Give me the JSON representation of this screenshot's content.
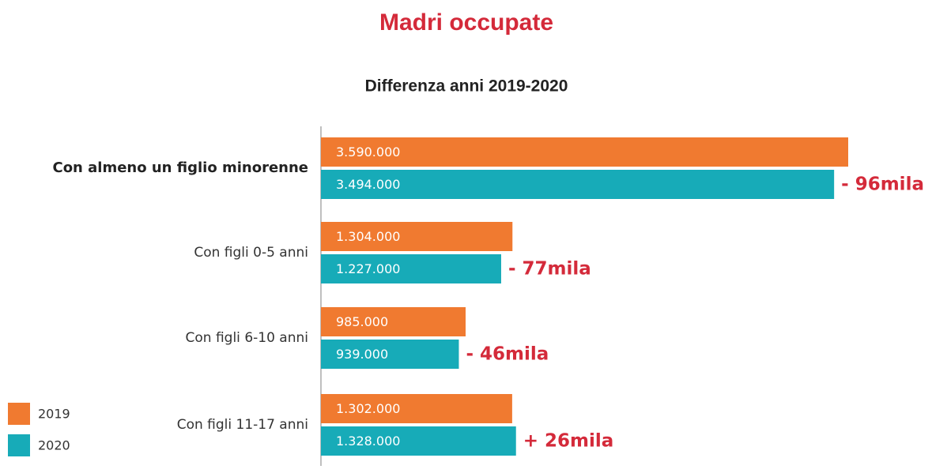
{
  "chart_data": {
    "type": "hbar",
    "title": "Madri occupate",
    "subtitle": "Differenza anni 2019-2020",
    "categories": [
      "Con almeno un figlio minorenne",
      "Con figli 0-5 anni",
      "Con figli 6-10 anni",
      "Con figli 11-17 anni"
    ],
    "series": [
      {
        "name": "2019",
        "color": "#f07a30",
        "values": [
          3590000,
          1304000,
          985000,
          1302000
        ],
        "value_labels": [
          "3.590.000",
          "1.304.000",
          "985.000",
          "1.302.000"
        ]
      },
      {
        "name": "2020",
        "color": "#17abb8",
        "values": [
          3494000,
          1227000,
          939000,
          1328000
        ],
        "value_labels": [
          "3.494.000",
          "1.227.000",
          "939.000",
          "1.328.000"
        ]
      }
    ],
    "annotations": [
      "- 96mila",
      "- 77mila",
      "- 46mila",
      "+ 26mila"
    ],
    "annotation_color": "#d42a3a",
    "legend": "bottom-left"
  }
}
